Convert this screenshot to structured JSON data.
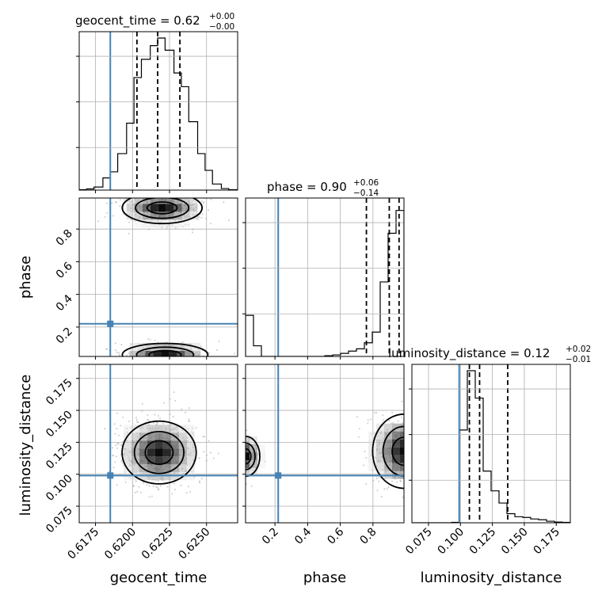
{
  "titles": {
    "geocent_time": {
      "name": "geocent_time",
      "value": "0.62",
      "plus": "+0.00",
      "minus": "−0.00"
    },
    "phase": {
      "name": "phase",
      "value": "0.90",
      "plus": "+0.06",
      "minus": "−0.14"
    },
    "luminosity_distance": {
      "name": "luminosity_distance",
      "value": "0.12",
      "plus": "+0.02",
      "minus": "−0.01"
    }
  },
  "labels": {
    "geocent_time": "geocent_time",
    "phase": "phase",
    "luminosity_distance": "luminosity_distance"
  },
  "ticks": {
    "geocent_time": [
      "0.6175",
      "0.6200",
      "0.6225",
      "0.6250"
    ],
    "phase": [
      "0.2",
      "0.4",
      "0.6",
      "0.8"
    ],
    "luminosity_distance": [
      "0.075",
      "0.100",
      "0.125",
      "0.150",
      "0.175"
    ]
  },
  "colors": {
    "truth": "#4682b4",
    "hist": "#000000",
    "grid": "#b0b0b0",
    "scatter": "#999999"
  },
  "chart_data": {
    "type": "corner",
    "parameters": [
      "geocent_time",
      "phase",
      "luminosity_distance"
    ],
    "truths": {
      "geocent_time": 0.6185,
      "phase": 0.22,
      "luminosity_distance": 0.099
    },
    "ranges": {
      "geocent_time": [
        0.6164,
        0.6271
      ],
      "phase": [
        0.02,
        0.99
      ],
      "luminosity_distance": [
        0.062,
        0.186
      ]
    },
    "tick_values": {
      "geocent_time": [
        0.6175,
        0.62,
        0.6225,
        0.625
      ],
      "phase": [
        0.2,
        0.4,
        0.6,
        0.8
      ],
      "luminosity_distance": [
        0.075,
        0.1,
        0.125,
        0.15,
        0.175
      ]
    },
    "quantiles": {
      "geocent_time": [
        0.6203,
        0.6217,
        0.6232
      ],
      "phase": [
        0.76,
        0.9,
        0.96
      ],
      "luminosity_distance": [
        0.107,
        0.115,
        0.137
      ]
    },
    "histograms": {
      "geocent_time": {
        "edges": [
          0.6164,
          0.6169,
          0.6174,
          0.618,
          0.6185,
          0.619,
          0.6196,
          0.6201,
          0.6206,
          0.6212,
          0.6217,
          0.6222,
          0.6228,
          0.6233,
          0.6238,
          0.6244,
          0.6249,
          0.6254,
          0.626,
          0.6265,
          0.6271
        ],
        "counts": [
          0.003,
          0.008,
          0.02,
          0.08,
          0.12,
          0.24,
          0.44,
          0.74,
          0.86,
          0.95,
          1.0,
          0.92,
          0.77,
          0.68,
          0.45,
          0.24,
          0.13,
          0.04,
          0.01,
          0.003
        ]
      },
      "phase": {
        "edges": [
          0.02,
          0.0685,
          0.117,
          0.1655,
          0.214,
          0.2625,
          0.311,
          0.3595,
          0.408,
          0.4565,
          0.505,
          0.5535,
          0.602,
          0.6505,
          0.699,
          0.7475,
          0.796,
          0.8445,
          0.893,
          0.9415,
          0.99
        ],
        "counts": [
          0.27,
          0.07,
          0.0,
          0.0,
          0.0,
          0.0,
          0.0,
          0.0,
          0.0,
          0.0,
          0.005,
          0.01,
          0.02,
          0.035,
          0.05,
          0.09,
          0.16,
          0.49,
          0.81,
          0.96
        ]
      },
      "luminosity_distance": {
        "edges": [
          0.062,
          0.0682,
          0.0744,
          0.0806,
          0.0868,
          0.093,
          0.0992,
          0.1054,
          0.1116,
          0.1178,
          0.124,
          0.1302,
          0.1364,
          0.1426,
          0.1488,
          0.155,
          0.1612,
          0.1674,
          0.1736,
          0.1798,
          0.186
        ],
        "counts": [
          0.0,
          0.0,
          0.0,
          0.0,
          0.0,
          0.003,
          0.61,
          1.0,
          0.82,
          0.34,
          0.21,
          0.13,
          0.06,
          0.04,
          0.035,
          0.025,
          0.02,
          0.01,
          0.005,
          0.003
        ]
      }
    },
    "density_peaks": {
      "geocent_time_phase": [
        [
          0.622,
          0.93
        ],
        [
          0.6222,
          0.03
        ]
      ],
      "geocent_time_luminosity_distance": [
        [
          0.6223,
          0.114
        ]
      ],
      "phase_luminosity_distance": [
        [
          0.02,
          0.114
        ],
        [
          0.99,
          0.114
        ]
      ]
    },
    "grid": true
  }
}
